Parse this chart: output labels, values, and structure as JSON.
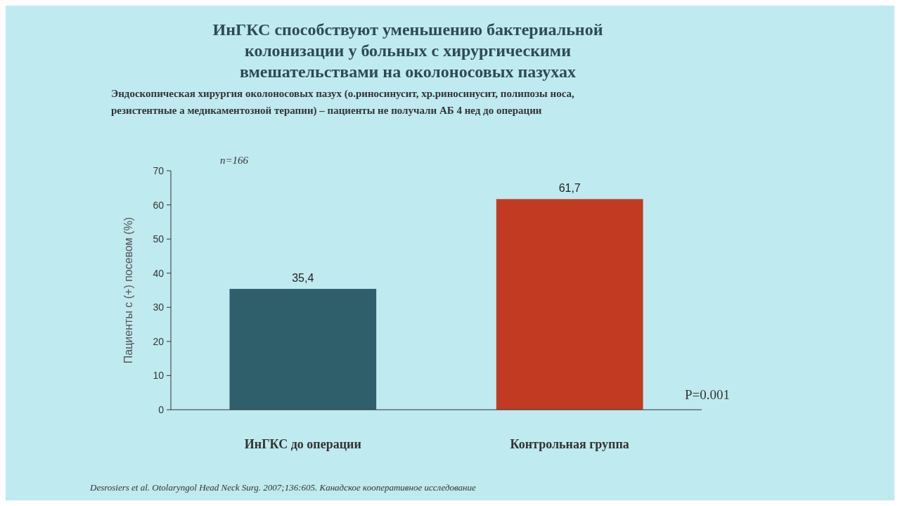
{
  "chart_data": {
    "type": "bar",
    "title": "ИнГКС способствуют уменьшению бактериальной колонизации у больных с хирургическими вмешательствами на околоносовых пазухах",
    "subtitle": "Эндоскопическая хирургия околоносовых пазух (о.риносинусит, хр.риносинусит, полипозы носа, резистентные а медикаментозной терапии) – пациенты не получали АБ 4 нед до операции",
    "ylabel": "Пациенты с (+) посевом (%)",
    "categories": [
      "ИнГКС до операции",
      "Контрольная группа"
    ],
    "values": [
      35.4,
      61.7
    ],
    "colors": [
      "#2f5f6a",
      "#c23a22"
    ],
    "value_labels": [
      "35,4",
      "61,7"
    ],
    "ylim": [
      0,
      70
    ],
    "yticks": [
      0,
      10,
      20,
      30,
      40,
      50,
      60,
      70
    ],
    "annotations": [
      "n=166",
      "P=0.001",
      "Desrosiers et al. Otolaryngol Head Neck Surg. 2007;136:605. Канадское кооперативное исследование"
    ]
  }
}
